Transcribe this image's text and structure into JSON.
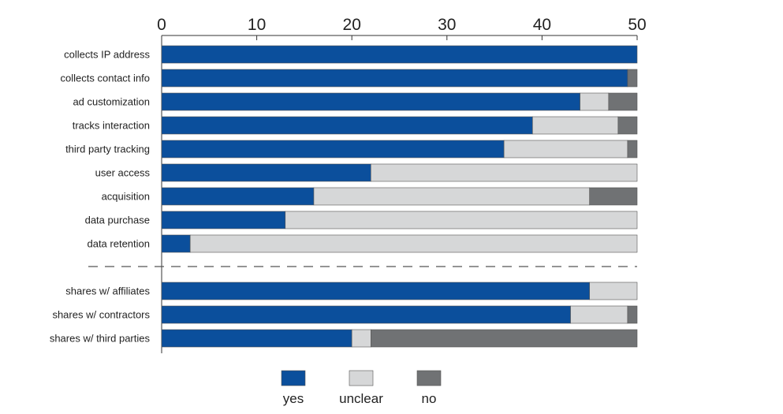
{
  "chart_data": {
    "type": "bar",
    "orientation": "horizontal",
    "stacked": true,
    "xlim": [
      0,
      50
    ],
    "xticks": [
      0,
      10,
      20,
      30,
      40,
      50
    ],
    "title": "",
    "xlabel": "",
    "ylabel": "",
    "grid": false,
    "legend_position": "bottom",
    "groups": [
      {
        "categories": [
          "collects IP address",
          "collects contact info",
          "ad customization",
          "tracks interaction",
          "third party tracking",
          "user access",
          "acquisition",
          "data purchase",
          "data retention"
        ]
      },
      {
        "categories": [
          "shares w/ affiliates",
          "shares w/ contractors",
          "shares w/ third parties"
        ]
      }
    ],
    "categories": [
      "collects IP address",
      "collects contact info",
      "ad customization",
      "tracks interaction",
      "third party tracking",
      "user access",
      "acquisition",
      "data purchase",
      "data retention",
      "shares w/ affiliates",
      "shares w/ contractors",
      "shares w/ third parties"
    ],
    "series": [
      {
        "name": "yes",
        "color": "#0b4f9c",
        "values": [
          50,
          49,
          44,
          39,
          36,
          22,
          16,
          13,
          3,
          45,
          43,
          20
        ]
      },
      {
        "name": "unclear",
        "color": "#d6d7d8",
        "values": [
          0,
          0,
          3,
          9,
          13,
          28,
          29,
          37,
          47,
          5,
          6,
          2
        ]
      },
      {
        "name": "no",
        "color": "#707274",
        "values": [
          0,
          1,
          3,
          2,
          1,
          0,
          5,
          0,
          0,
          0,
          1,
          28
        ]
      }
    ]
  }
}
